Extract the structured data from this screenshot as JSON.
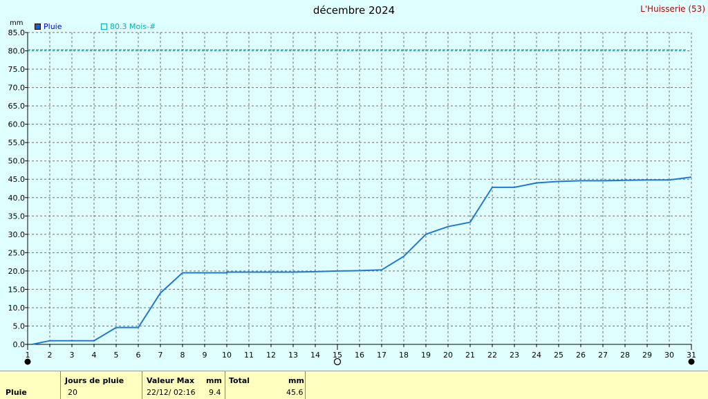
{
  "header": {
    "title": "décembre 2024",
    "station": "L'Huisserie (53)",
    "unit": "mm"
  },
  "legend": {
    "series_label": "Pluie",
    "reference_label": "80.3 Mois-#"
  },
  "colors": {
    "background": "#e0ffff",
    "series": "#1e78dc",
    "reference": "#00c0c0",
    "grid": "#707070",
    "station": "#c00000",
    "footer": "#ffffc0"
  },
  "chart_data": {
    "type": "line",
    "title": "décembre 2024",
    "ylabel": "mm",
    "ylim": [
      0,
      85
    ],
    "ytick_labels": [
      "0.0",
      "5.0",
      "10.0",
      "15.0",
      "20.0",
      "25.0",
      "30.0",
      "35.0",
      "40.0",
      "45.0",
      "50.0",
      "55.0",
      "60.0",
      "65.0",
      "70.0",
      "75.0",
      "80.0",
      "85.0"
    ],
    "xlim": [
      1,
      31
    ],
    "x": [
      1,
      2,
      3,
      4,
      5,
      6,
      7,
      8,
      9,
      10,
      11,
      12,
      13,
      14,
      15,
      16,
      17,
      18,
      19,
      20,
      21,
      22,
      23,
      24,
      25,
      26,
      27,
      28,
      29,
      30,
      31
    ],
    "grid": true,
    "series": [
      {
        "name": "Pluie",
        "points": [
          [
            1.2,
            0.0
          ],
          [
            2,
            1.0
          ],
          [
            3,
            1.0
          ],
          [
            4,
            1.0
          ],
          [
            5,
            4.6
          ],
          [
            6,
            4.6
          ],
          [
            7,
            14.0
          ],
          [
            8,
            19.5
          ],
          [
            9,
            19.5
          ],
          [
            10,
            19.5
          ],
          [
            10,
            19.7
          ],
          [
            11,
            19.7
          ],
          [
            12,
            19.7
          ],
          [
            13,
            19.7
          ],
          [
            14,
            19.8
          ],
          [
            15,
            20.0
          ],
          [
            16,
            20.1
          ],
          [
            17,
            20.3
          ],
          [
            18,
            24.0
          ],
          [
            19,
            30.0
          ],
          [
            20,
            32.1
          ],
          [
            21,
            33.3
          ],
          [
            22,
            42.8
          ],
          [
            23,
            42.8
          ],
          [
            24,
            44.0
          ],
          [
            25,
            44.4
          ],
          [
            26,
            44.6
          ],
          [
            27,
            44.6
          ],
          [
            28,
            44.7
          ],
          [
            29,
            44.8
          ],
          [
            30,
            44.8
          ],
          [
            31,
            45.6
          ]
        ]
      },
      {
        "name": "80.3 Mois-#",
        "reference_value": 80.3
      }
    ],
    "moon_phases": [
      {
        "day": 1,
        "phase": "new"
      },
      {
        "day": 15,
        "phase": "full"
      },
      {
        "day": 31,
        "phase": "new"
      }
    ]
  },
  "footer": {
    "row_label": "Pluie",
    "rain_days_header": "Jours de pluie",
    "rain_days_value": "20",
    "max_header": "Valeur Max",
    "max_unit": "mm",
    "max_date": "22/12/  02:16",
    "max_value": "9.4",
    "total_header": "Total",
    "total_unit": "mm",
    "total_value": "45.6"
  }
}
